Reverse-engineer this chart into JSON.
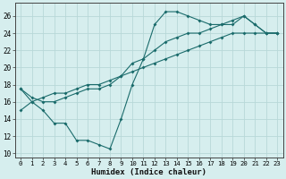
{
  "xlabel": "Humidex (Indice chaleur)",
  "xlim": [
    -0.5,
    23.5
  ],
  "ylim": [
    9.5,
    27.5
  ],
  "yticks": [
    10,
    12,
    14,
    16,
    18,
    20,
    22,
    24,
    26
  ],
  "xticks": [
    0,
    1,
    2,
    3,
    4,
    5,
    6,
    7,
    8,
    9,
    10,
    11,
    12,
    13,
    14,
    15,
    16,
    17,
    18,
    19,
    20,
    21,
    22,
    23
  ],
  "bg_color": "#d6eeee",
  "grid_color": "#b8d8d8",
  "line_color": "#1a6b6b",
  "series1_x": [
    0,
    1,
    2,
    3,
    4,
    5,
    6,
    7,
    8,
    9,
    10,
    11,
    12,
    13,
    14,
    15,
    16,
    17,
    18,
    19,
    20,
    21,
    22,
    23
  ],
  "series1_y": [
    17.5,
    16.0,
    15.0,
    13.5,
    13.5,
    11.5,
    11.5,
    11.0,
    10.5,
    14.0,
    18.0,
    21.0,
    25.0,
    26.5,
    26.5,
    26.0,
    25.5,
    25.0,
    25.0,
    25.0,
    26.0,
    25.0,
    24.0,
    24.0
  ],
  "series2_x": [
    0,
    1,
    2,
    3,
    4,
    5,
    6,
    7,
    8,
    9,
    10,
    11,
    12,
    13,
    14,
    15,
    16,
    17,
    18,
    19,
    20,
    21,
    22,
    23
  ],
  "series2_y": [
    17.5,
    16.5,
    16.0,
    16.0,
    16.5,
    17.0,
    17.5,
    17.5,
    18.0,
    19.0,
    20.5,
    21.0,
    22.0,
    23.0,
    23.5,
    24.0,
    24.0,
    24.5,
    25.0,
    25.5,
    26.0,
    25.0,
    24.0,
    24.0
  ],
  "series3_x": [
    0,
    1,
    2,
    3,
    4,
    5,
    6,
    7,
    8,
    9,
    10,
    11,
    12,
    13,
    14,
    15,
    16,
    17,
    18,
    19,
    20,
    21,
    22,
    23
  ],
  "series3_y": [
    15.0,
    16.0,
    16.5,
    17.0,
    17.0,
    17.5,
    18.0,
    18.0,
    18.5,
    19.0,
    19.5,
    20.0,
    20.5,
    21.0,
    21.5,
    22.0,
    22.5,
    23.0,
    23.5,
    24.0,
    24.0,
    24.0,
    24.0,
    24.0
  ],
  "marker": "D",
  "markersize": 2.0,
  "linewidth": 0.8
}
